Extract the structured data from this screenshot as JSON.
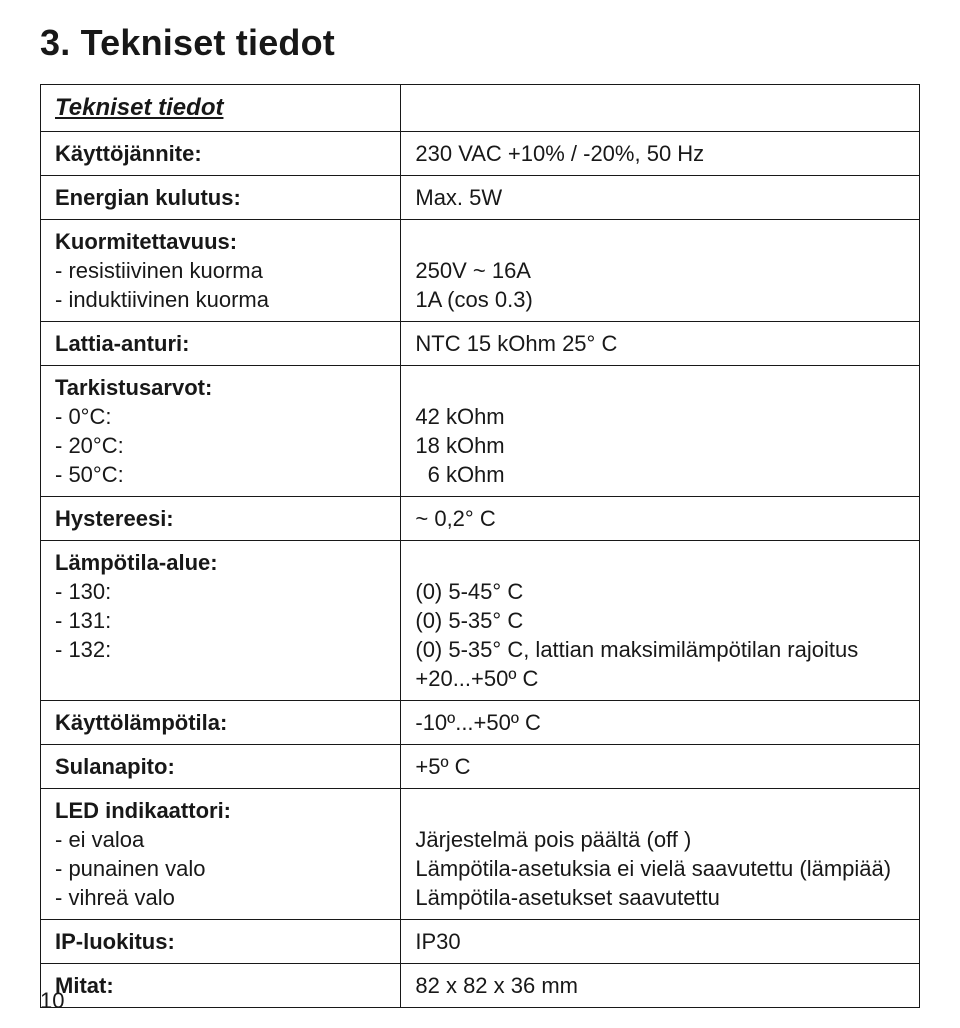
{
  "title": "3. Tekniset tiedot",
  "section_head": "Tekniset tiedot",
  "page_number": "10",
  "labels": {
    "kayttojannite": "Käyttöjännite:",
    "energian": "Energian kulutus:",
    "kuormitettavuus": "Kuormitettavuus:",
    "resist": "- resistiivinen kuorma",
    "indukt": "- induktiivinen kuorma",
    "lattia": "Lattia-anturi:",
    "tarkistus": "Tarkistusarvot:",
    "t0": "-  0°C:",
    "t20": "- 20°C:",
    "t50": "- 50°C:",
    "hystereesi": "Hystereesi:",
    "lampotila_alue": "Lämpötila-alue:",
    "m130": "- 130:",
    "m131": "- 131:",
    "m132": "- 132:",
    "kayttolampo": "Käyttölämpötila:",
    "sulanapito": "Sulanapito:",
    "led": "LED indikaattori:",
    "led_none": "- ei valoa",
    "led_red": "- punainen valo",
    "led_green": "- vihreä valo",
    "ip": "IP-luokitus:",
    "mitat": "Mitat:"
  },
  "values": {
    "kayttojannite": "230 VAC +10% / -20%, 50 Hz",
    "energian": "Max. 5W",
    "resist": "250V ~ 16A",
    "indukt": "1A (cos 0.3)",
    "lattia": "NTC 15 kOhm 25° C",
    "t0": "42 kOhm",
    "t20": "18 kOhm",
    "t50": "  6 kOhm",
    "hystereesi": "~ 0,2° C",
    "m130": "(0) 5-45° C",
    "m131": "(0) 5-35° C",
    "m132_a": "(0) 5-35° C, lattian maksimilämpötilan rajoitus",
    "m132_b": "+20...+50º C",
    "kayttolampo": "-10º...+50º C",
    "sulanapito": "+5º C",
    "led_none": "Järjestelmä pois päältä (off )",
    "led_red": "Lämpötila-asetuksia ei vielä saavutettu (lämpiää)",
    "led_green": "Lämpötila-asetukset saavutettu",
    "ip": "IP30",
    "mitat": "82 x 82 x 36 mm"
  }
}
